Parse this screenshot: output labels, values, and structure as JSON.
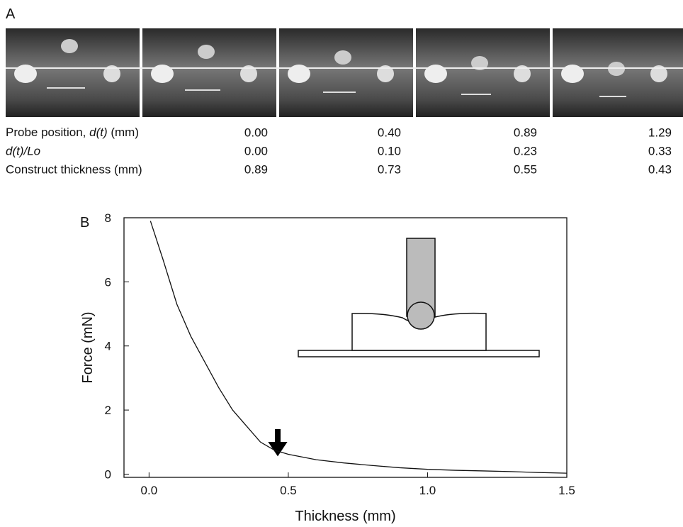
{
  "panel_a": {
    "label": "A",
    "table": {
      "rows": [
        {
          "label": [
            "Probe position, ",
            "d(t)",
            " (mm)"
          ],
          "values": [
            "0.00",
            "0.40",
            "0.89",
            "1.29"
          ]
        },
        {
          "label": [
            "d(t)/Lo"
          ],
          "values": [
            "0.00",
            "0.10",
            "0.23",
            "0.33"
          ]
        },
        {
          "label": [
            "Construct thickness (mm)"
          ],
          "values": [
            "0.89",
            "0.73",
            "0.55",
            "0.43"
          ]
        }
      ]
    }
  },
  "chart_data": {
    "type": "line",
    "panel_label": "B",
    "xlabel": "Thickness (mm)",
    "ylabel": "Force (mN)",
    "x": [
      0.005,
      0.02,
      0.05,
      0.075,
      0.1,
      0.15,
      0.2,
      0.25,
      0.3,
      0.35,
      0.4,
      0.45,
      0.5,
      0.6,
      0.7,
      0.8,
      0.9,
      1.0,
      1.1,
      1.2,
      1.3,
      1.4,
      1.5
    ],
    "values": [
      7.9,
      7.5,
      6.7,
      6.0,
      5.3,
      4.3,
      3.5,
      2.7,
      2.0,
      1.5,
      1.0,
      0.75,
      0.62,
      0.45,
      0.35,
      0.27,
      0.2,
      0.15,
      0.12,
      0.1,
      0.08,
      0.05,
      0.03
    ],
    "color": "#111111",
    "xlim": [
      -0.09,
      1.5
    ],
    "ylim": [
      -0.1,
      8
    ],
    "xticks": [
      {
        "value": 0,
        "label": "0.0"
      },
      0.5,
      {
        "value": 1,
        "label": "1.0"
      },
      1.5
    ],
    "yticks": [
      0,
      2,
      4,
      6,
      8
    ]
  }
}
